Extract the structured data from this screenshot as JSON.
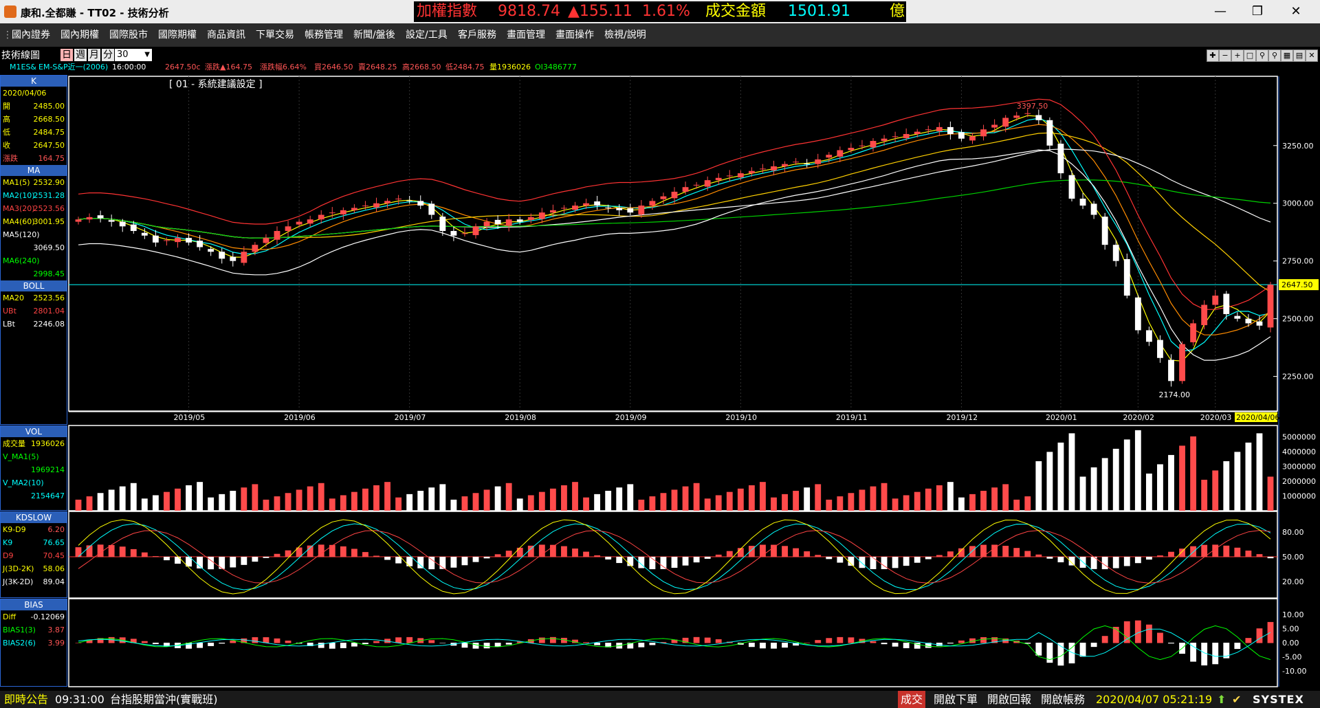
{
  "app": {
    "title": "康和.全都賺 - TT02 - 技術分析"
  },
  "ticker": {
    "label": "加權指數",
    "value": "9818.74",
    "change": "▲155.11",
    "pct": "1.61%",
    "vol_label": "成交金額",
    "vol_value": "1501.91",
    "vol_unit": "億"
  },
  "menu": [
    "國內證券",
    "國內期權",
    "國際股市",
    "國際期權",
    "商品資訊",
    "下單交易",
    "帳務管理",
    "新聞/盤後",
    "設定/工具",
    "客戶服務",
    "畫面管理",
    "畫面操作",
    "檢視/說明"
  ],
  "toolbar": {
    "tab": "技術線圖",
    "periods": [
      "日",
      "週",
      "月",
      "分"
    ],
    "interval": "30"
  },
  "info": {
    "symbol": "M1ES&",
    "name": "EM-S&P近一(2006)",
    "time": "16:00:00",
    "last": "2647.50c",
    "chg": "漲跌▲164.75",
    "chgpct": "漲跌幅6.64%",
    "buy": "買2646.50",
    "sell": "賣2648.25",
    "high": "高2668.50",
    "low": "低2484.75",
    "vol": "量1936026",
    "oi": "OI3486777"
  },
  "subtitle": "[ 01 - 系統建議設定 ]",
  "k_panel": {
    "title": "K",
    "date": "2020/04/06",
    "rows": [
      {
        "k": "開",
        "v": "2485.00"
      },
      {
        "k": "高",
        "v": "2668.50"
      },
      {
        "k": "低",
        "v": "2484.75"
      },
      {
        "k": "收",
        "v": "2647.50"
      },
      {
        "k": "漲跌",
        "v": "164.75"
      }
    ]
  },
  "ma_panel": {
    "title": "MA",
    "rows": [
      {
        "k": "MA1(5)",
        "v": "2532.90"
      },
      {
        "k": "MA2(10)",
        "v": "2531.28"
      },
      {
        "k": "MA3(20)",
        "v": "2523.56"
      },
      {
        "k": "MA4(60)",
        "v": "3001.95"
      },
      {
        "k": "MA5(120)",
        "v": ""
      },
      {
        "k": "",
        "v": "3069.50"
      },
      {
        "k": "MA6(240)",
        "v": ""
      },
      {
        "k": "",
        "v": "2998.45"
      }
    ]
  },
  "boll_panel": {
    "title": "BOLL",
    "rows": [
      {
        "k": "MA20",
        "v": "2523.56"
      },
      {
        "k": "UBt",
        "v": "2801.04"
      },
      {
        "k": "LBt",
        "v": "2246.08"
      }
    ]
  },
  "vol_panel": {
    "title": "VOL",
    "rows": [
      {
        "k": "成交量",
        "v": "1936026"
      },
      {
        "k": "V_MA1(5)",
        "v": ""
      },
      {
        "k": "",
        "v": "1969214"
      },
      {
        "k": "V_MA2(10)",
        "v": ""
      },
      {
        "k": "",
        "v": "2154647"
      }
    ]
  },
  "kd_panel": {
    "title": "KDSLOW",
    "rows": [
      {
        "k": "K9-D9",
        "v": "6.20"
      },
      {
        "k": "K9",
        "v": "76.65"
      },
      {
        "k": "D9",
        "v": "70.45"
      },
      {
        "k": "J(3D-2K)",
        "v": "58.06"
      },
      {
        "k": "J(3K-2D)",
        "v": "89.04"
      }
    ]
  },
  "bias_panel": {
    "title": "BIAS",
    "rows": [
      {
        "k": "Diff",
        "v": "-0.12069"
      },
      {
        "k": "BIAS1(3)",
        "v": "3.87"
      },
      {
        "k": "BIAS2(6)",
        "v": "3.99"
      }
    ]
  },
  "chart_data": {
    "type": "candlestick",
    "x_ticks": [
      "2019/05",
      "2019/06",
      "2019/07",
      "2019/08",
      "2019/09",
      "2019/10",
      "2019/11",
      "2019/12",
      "2020/01",
      "2020/02",
      "2020/03"
    ],
    "last_date": "2020/04/06",
    "price_ticks": [
      "3250.00",
      "3000.00",
      "2750.00",
      "2500.00",
      "2250.00"
    ],
    "price_range": [
      2100,
      3550
    ],
    "last_price_label": "2647.50",
    "high_label": "3397.50",
    "low_label": "2174.00",
    "closes": [
      2930,
      2940,
      2935,
      2920,
      2900,
      2880,
      2860,
      2830,
      2840,
      2850,
      2830,
      2810,
      2790,
      2760,
      2750,
      2790,
      2820,
      2850,
      2880,
      2900,
      2920,
      2930,
      2950,
      2960,
      2970,
      2980,
      2990,
      3000,
      3010,
      3020,
      3010,
      2990,
      2950,
      2880,
      2860,
      2870,
      2900,
      2920,
      2910,
      2930,
      2920,
      2940,
      2960,
      2970,
      2980,
      2990,
      3000,
      2990,
      2980,
      2970,
      2960,
      2990,
      3010,
      3030,
      3050,
      3070,
      3080,
      3100,
      3110,
      3120,
      3130,
      3140,
      3150,
      3160,
      3170,
      3180,
      3170,
      3190,
      3210,
      3230,
      3240,
      3250,
      3270,
      3280,
      3290,
      3300,
      3310,
      3320,
      3330,
      3300,
      3280,
      3290,
      3320,
      3340,
      3370,
      3380,
      3390,
      3360,
      3250,
      3130,
      3020,
      2990,
      2950,
      2820,
      2750,
      2600,
      2450,
      2400,
      2330,
      2230,
      2390,
      2480,
      2560,
      2600,
      2520,
      2500,
      2480,
      2470,
      2647.5
    ],
    "vol_ticks": [
      "5000000",
      "4000000",
      "3000000",
      "2000000",
      "1000000"
    ],
    "kd_ticks": [
      "80.00",
      "50.00",
      "20.00"
    ],
    "bias_ticks": [
      "10.00",
      "5.00",
      "0.00",
      "-5.00",
      "-10.00"
    ]
  },
  "status": {
    "label": "即時公告",
    "time": "09:31:00",
    "msg": "台指股期當沖(實戰班)",
    "trade": "成交",
    "b1": "開啟下單",
    "b2": "開啟回報",
    "b3": "開啟帳務",
    "datetime": "2020/04/07 05:21:19",
    "brand": "SYSTEX"
  },
  "colors": {
    "up": "#ff4b4b",
    "down": "#ffffff",
    "panel_border": "#2b66d6",
    "hdr": "#2b5fb8",
    "yellow": "#ffff00"
  }
}
